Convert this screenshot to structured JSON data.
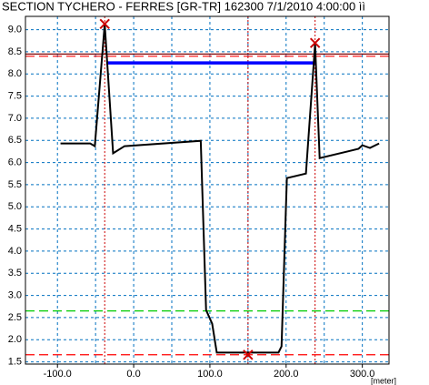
{
  "chart_data": {
    "type": "line",
    "title": "SECTION TYCHERO - FERRES [GR-TR] 162300  7/1/2010 4:00:00 ìì",
    "x_unit": "[meter]",
    "x": [
      -96,
      -57,
      -51,
      -38,
      -27,
      -12,
      88,
      95,
      103,
      109,
      190,
      194,
      201,
      226,
      238,
      244,
      295,
      300,
      310,
      322
    ],
    "values": [
      6.43,
      6.43,
      6.37,
      9.12,
      6.21,
      6.37,
      6.49,
      2.67,
      2.36,
      1.71,
      1.71,
      1.85,
      5.65,
      5.75,
      8.67,
      6.1,
      6.31,
      6.39,
      6.33,
      6.43
    ],
    "color": "#000000",
    "xlim": [
      -142,
      335
    ],
    "ylim": [
      1.45,
      9.3
    ],
    "xticks": [
      {
        "value": -100,
        "label": "-100.0"
      },
      {
        "value": 0,
        "label": "0.0"
      },
      {
        "value": 100,
        "label": "100.0"
      },
      {
        "value": 200,
        "label": "200.0"
      },
      {
        "value": 300,
        "label": "300.0"
      }
    ],
    "xgridlines": [
      -100,
      -50,
      0,
      50,
      100,
      150,
      200,
      250,
      300
    ],
    "yticks": [
      {
        "value": 1.5,
        "label": "1.5"
      },
      {
        "value": 2,
        "label": "2.0"
      },
      {
        "value": 2.5,
        "label": "2.5"
      },
      {
        "value": 3,
        "label": "3.0"
      },
      {
        "value": 3.5,
        "label": "3.5"
      },
      {
        "value": 4,
        "label": "4.0"
      },
      {
        "value": 4.5,
        "label": "4.5"
      },
      {
        "value": 5,
        "label": "5.0"
      },
      {
        "value": 5.5,
        "label": "5.5"
      },
      {
        "value": 6,
        "label": "6.0"
      },
      {
        "value": 6.5,
        "label": "6.5"
      },
      {
        "value": 7,
        "label": "7.0"
      },
      {
        "value": 7.5,
        "label": "7.5"
      },
      {
        "value": 8,
        "label": "8.0"
      },
      {
        "value": 8.5,
        "label": "8.5"
      },
      {
        "value": 9,
        "label": "9.0"
      }
    ],
    "grid": true,
    "grid_color": "#0070c0",
    "hlines": [
      {
        "y": 8.45,
        "color": "#800000",
        "style": "solid"
      },
      {
        "y": 8.4,
        "color": "#ff0000",
        "style": "dashed"
      },
      {
        "y": 2.65,
        "color": "#00cc00",
        "style": "dashed"
      },
      {
        "y": 1.66,
        "color": "#ff0000",
        "style": "dashed"
      }
    ],
    "segments": [
      {
        "x": [
          -36,
          238
        ],
        "y": [
          8.25,
          8.25
        ],
        "color": "#0000ff"
      }
    ],
    "markers": {
      "x": [
        -38,
        150,
        238
      ],
      "y": [
        9.13,
        1.66,
        8.7
      ],
      "color": "#cc0000"
    }
  }
}
